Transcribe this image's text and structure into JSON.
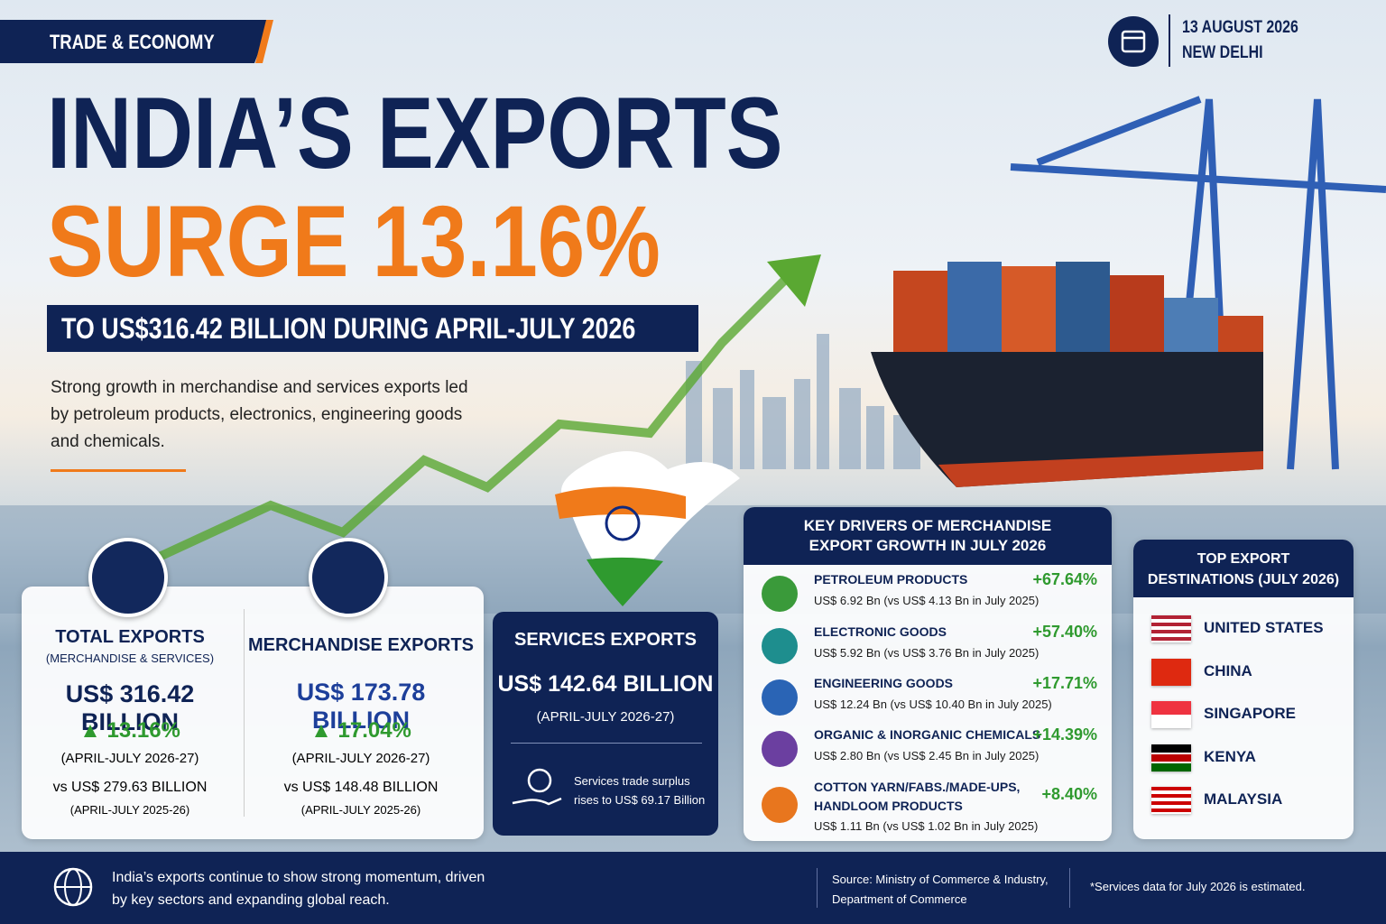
{
  "header": {
    "tag": "TRADE & ECONOMY",
    "date": "13 AUGUST 2026",
    "place": "NEW DELHI"
  },
  "hero": {
    "title_line1": "INDIA’S EXPORTS",
    "title_line2": "SURGE 13.16%",
    "subtitle": "TO US$316.42 BILLION DURING APRIL-JULY 2026",
    "description": "Strong growth in merchandise and services exports led by petroleum products, electronics, engineering goods and chemicals."
  },
  "cards": {
    "total": {
      "title": "TOTAL EXPORTS",
      "subtitle": "(MERCHANDISE & SERVICES)",
      "value": "US$ 316.42 BILLION",
      "growth": "13.16%",
      "period": "(APRIL-JULY 2026-27)",
      "previous": "vs US$ 279.63 BILLION",
      "previous_period": "(APRIL-JULY 2025-26)"
    },
    "merchandise": {
      "title": "MERCHANDISE EXPORTS",
      "value": "US$ 173.78 BILLION",
      "growth": "17.04%",
      "period": "(APRIL-JULY 2026-27)",
      "previous": "vs US$ 148.48 BILLION",
      "previous_period": "(APRIL-JULY 2025-26)"
    },
    "services": {
      "title": "SERVICES EXPORTS",
      "value": "US$ 142.64 BILLION",
      "period": "(APRIL-JULY 2026-27)",
      "note": "Services trade surplus rises to US$ 69.17 Billion"
    }
  },
  "drivers": {
    "title": "KEY DRIVERS OF MERCHANDISE EXPORT GROWTH IN JULY 2026",
    "items": [
      {
        "name": "PETROLEUM PRODUCTS",
        "change": "+67.64%",
        "detail": "US$ 6.92 Bn (vs US$ 4.13 Bn in July 2025)"
      },
      {
        "name": "ELECTRONIC GOODS",
        "change": "+57.40%",
        "detail": "US$ 5.92 Bn (vs US$ 3.76 Bn in July 2025)"
      },
      {
        "name": "ENGINEERING GOODS",
        "change": "+17.71%",
        "detail": "US$ 12.24 Bn (vs US$ 10.40 Bn in July 2025)"
      },
      {
        "name": "ORGANIC & INORGANIC CHEMICALS",
        "change": "+14.39%",
        "detail": "US$ 2.80 Bn (vs US$ 2.45 Bn in July 2025)"
      },
      {
        "name": "COTTON YARN/FABS./MADE-UPS, HANDLOOM PRODUCTS",
        "change": "+8.40%",
        "detail": "US$ 1.11 Bn (vs US$ 1.02 Bn in July 2025)"
      }
    ]
  },
  "destinations": {
    "title": "TOP EXPORT DESTINATIONS (JULY 2026)",
    "items": [
      "UNITED STATES",
      "CHINA",
      "SINGAPORE",
      "KENYA",
      "MALAYSIA"
    ]
  },
  "footer": {
    "message": "India’s exports continue to show strong momentum, driven by key sectors and expanding global reach.",
    "source": "Source: Ministry of Commerce & Industry, Department of Commerce",
    "note": "*Services data for July 2026 is estimated."
  }
}
